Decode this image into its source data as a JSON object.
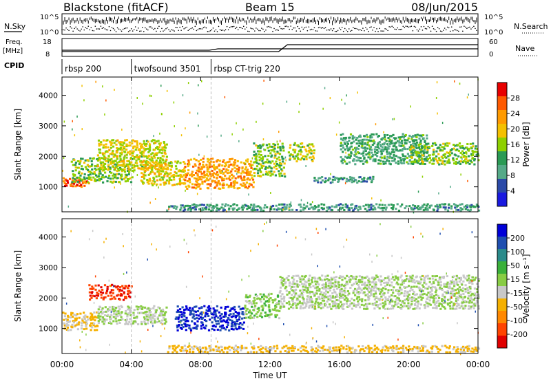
{
  "header": {
    "title": "Blackstone (fitACF)",
    "beam": "Beam 15",
    "date": "08/Jun/2015"
  },
  "top_panels": {
    "nsky_label": "N.Sky",
    "nsearch_label": "N.Search",
    "freq_label_1": "Freq.",
    "freq_label_2": "[MHz]",
    "nave_label": "Nave",
    "cpid_label": "CPID",
    "count_ticks": [
      "10^5",
      "10^0"
    ],
    "freq_ticks": [
      "18",
      "8"
    ],
    "nave_ticks": [
      "60",
      "0"
    ]
  },
  "cpid_segments": [
    {
      "name": "rbsp 200",
      "start_hour": 0
    },
    {
      "name": "twofsound 3501",
      "start_hour": 4
    },
    {
      "name": "rbsp CT-trig 220",
      "start_hour": 8.6
    }
  ],
  "colorbars": {
    "power": {
      "label": "Power [dB]",
      "ticks": [
        "28",
        "24",
        "20",
        "16",
        "12",
        "8",
        "4"
      ],
      "colors": [
        "#e80000",
        "#ff5a00",
        "#ff9a00",
        "#f4c000",
        "#8ed000",
        "#2a9a54",
        "#55aa88",
        "#2b4aa8",
        "#1a1ae0"
      ]
    },
    "velocity": {
      "label": "Velocity [m s⁻¹]",
      "ticks": [
        "200",
        "100",
        "50",
        "15",
        "-15",
        "-50",
        "-100",
        "-200"
      ],
      "colors": [
        "#0000d8",
        "#1f4fb0",
        "#2a8a8a",
        "#3ab03a",
        "#88cc44",
        "#c8c8c8",
        "#f5b000",
        "#ff8800",
        "#ff4400",
        "#e00000"
      ]
    }
  },
  "chart_data": [
    {
      "type": "heatmap",
      "name": "power",
      "ylabel": "Slant Range [km]",
      "xlabel": "Time UT",
      "x_ticks": [
        "00:00",
        "04:00",
        "08:00",
        "12:00",
        "16:00",
        "20:00",
        "00:00"
      ],
      "y_ticks": [
        1000,
        2000,
        3000,
        4000
      ],
      "xlim_hours": [
        0,
        24
      ],
      "ylim_km": [
        180,
        4600
      ],
      "value_range_db": [
        0,
        30
      ],
      "bands": [
        {
          "t0": 0.0,
          "t1": 1.5,
          "r0": 950,
          "r1": 1250,
          "value": 26
        },
        {
          "t0": 0.5,
          "t1": 4.0,
          "r0": 1100,
          "r1": 1900,
          "value": 14
        },
        {
          "t0": 2.0,
          "t1": 6.0,
          "r0": 1500,
          "r1": 2500,
          "value": 17
        },
        {
          "t0": 4.5,
          "t1": 7.0,
          "r0": 1000,
          "r1": 1800,
          "value": 18
        },
        {
          "t0": 7.0,
          "t1": 11.0,
          "r0": 900,
          "r1": 1900,
          "value": 22
        },
        {
          "t0": 11.0,
          "t1": 12.8,
          "r0": 1300,
          "r1": 2400,
          "value": 14
        },
        {
          "t0": 13.0,
          "t1": 14.5,
          "r0": 1800,
          "r1": 2400,
          "value": 16
        },
        {
          "t0": 14.5,
          "t1": 18.0,
          "r0": 1100,
          "r1": 1300,
          "value": 8
        },
        {
          "t0": 16.0,
          "t1": 21.0,
          "r0": 1700,
          "r1": 2700,
          "value": 10
        },
        {
          "t0": 20.0,
          "t1": 24.0,
          "r0": 1700,
          "r1": 2400,
          "value": 14
        },
        {
          "t0": 6.0,
          "t1": 24.0,
          "r0": 180,
          "r1": 400,
          "value": 8
        }
      ]
    },
    {
      "type": "heatmap",
      "name": "velocity",
      "ylabel": "Slant Range [km]",
      "xlabel": "Time UT",
      "x_ticks": [
        "00:00",
        "04:00",
        "08:00",
        "12:00",
        "16:00",
        "20:00",
        "00:00"
      ],
      "y_ticks": [
        1000,
        2000,
        3000,
        4000
      ],
      "xlim_hours": [
        0,
        24
      ],
      "ylim_km": [
        180,
        4600
      ],
      "value_range_ms": [
        -250,
        250
      ],
      "bands": [
        {
          "t0": 0.0,
          "t1": 2.0,
          "r0": 900,
          "r1": 1500,
          "value": -60
        },
        {
          "t0": 1.5,
          "t1": 4.0,
          "r0": 1900,
          "r1": 2400,
          "value": -220
        },
        {
          "t0": 2.0,
          "t1": 6.0,
          "r0": 1100,
          "r1": 1700,
          "value": 0
        },
        {
          "t0": 6.5,
          "t1": 10.5,
          "r0": 900,
          "r1": 1700,
          "value": 220
        },
        {
          "t0": 10.5,
          "t1": 12.5,
          "r0": 1300,
          "r1": 2100,
          "value": 30
        },
        {
          "t0": 12.5,
          "t1": 24.0,
          "r0": 1600,
          "r1": 2700,
          "value": 0
        },
        {
          "t0": 6.0,
          "t1": 24.0,
          "r0": 180,
          "r1": 400,
          "value": -70
        }
      ]
    }
  ]
}
